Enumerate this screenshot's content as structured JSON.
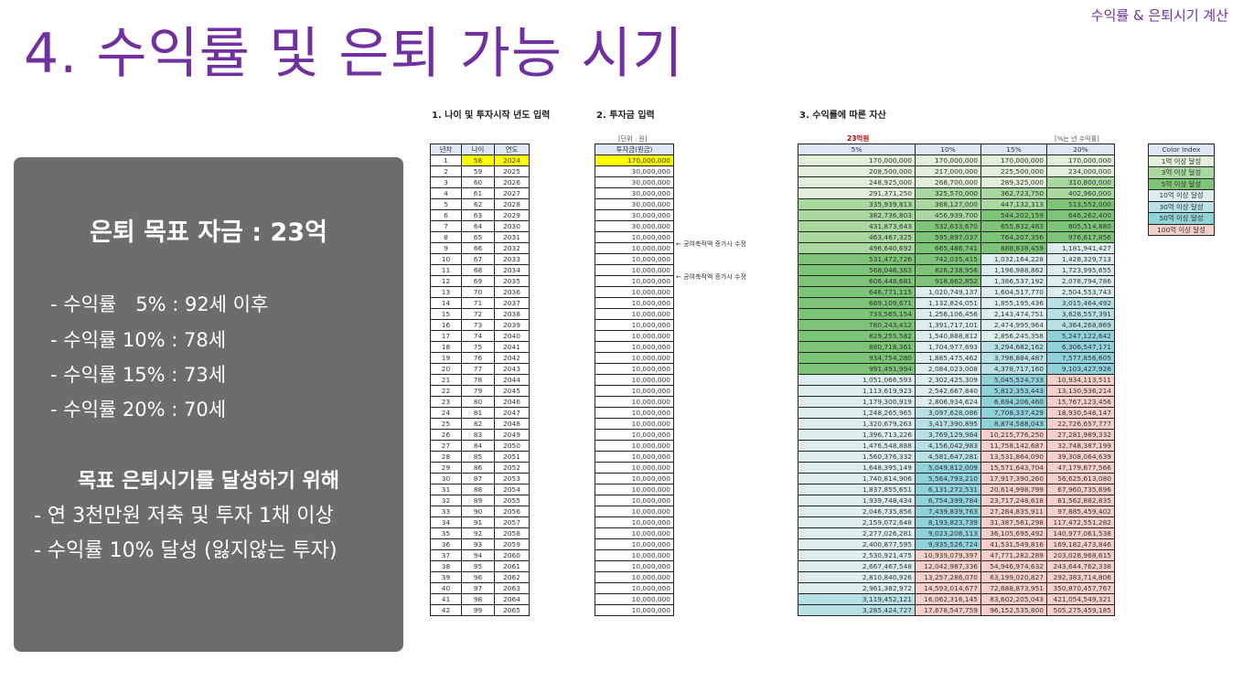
{
  "header": {
    "top_label": "수익률 & 은퇴시기 계산",
    "title": "4. 수익률 및 은퇴 가능 시기"
  },
  "panel": {
    "goal": "은퇴 목표 자금 : 23억",
    "rates": [
      "- 수익률　5% : 92세 이후",
      "- 수익률 10% : 78세",
      "- 수익률 15% : 73세",
      "- 수익률 20% : 70세"
    ],
    "plan_heading": "목표 은퇴시기를 달성하기 위해",
    "plan_items": [
      "- 연 3천만원 저축 및 투자 1채 이상",
      "- 수익률 10% 달성 (잃지않는 투자)"
    ]
  },
  "sections": {
    "s1": "1. 나이 및 투자시작 년도 입력",
    "s2": "2. 투자금 입력",
    "s3": "3. 수익률에 따른 자산",
    "unit_note": "[단위 : 원]",
    "target_note": "23억원",
    "rate_note": "[%는 년 수익률]"
  },
  "table1": {
    "headers": [
      "년차",
      "나이",
      "연도"
    ],
    "start_age": 58,
    "start_year": 2024,
    "rows": 42
  },
  "table2": {
    "header": "투자금(원금)",
    "first": "170,000,000",
    "year2to7": "30,000,000",
    "rest": "10,000,000",
    "arrow_notes": [
      "← 공여축적액 증가시 수정",
      "← 공여축적액 증가시 수정"
    ]
  },
  "table3": {
    "headers": [
      "5%",
      "10%",
      "15%",
      "20%"
    ],
    "rows": [
      [
        "170,000,000",
        "170,000,000",
        "170,000,000",
        "170,000,000"
      ],
      [
        "208,500,000",
        "217,000,000",
        "225,500,000",
        "234,000,000"
      ],
      [
        "248,925,000",
        "268,700,000",
        "289,325,000",
        "310,800,000"
      ],
      [
        "291,371,250",
        "325,570,000",
        "362,723,750",
        "402,960,000"
      ],
      [
        "335,939,813",
        "388,127,000",
        "447,132,313",
        "513,552,000"
      ],
      [
        "382,736,803",
        "456,939,700",
        "544,202,159",
        "646,262,400"
      ],
      [
        "431,873,643",
        "532,633,670",
        "655,832,483",
        "805,514,880"
      ],
      [
        "463,467,325",
        "595,897,037",
        "764,207,356",
        "976,617,856"
      ],
      [
        "496,640,692",
        "665,486,741",
        "888,838,459",
        "1,181,941,427"
      ],
      [
        "531,472,726",
        "742,035,415",
        "1,032,164,228",
        "1,428,329,713"
      ],
      [
        "568,046,363",
        "826,238,956",
        "1,196,988,862",
        "1,723,995,655"
      ],
      [
        "606,448,681",
        "918,862,852",
        "1,386,537,192",
        "2,078,794,786"
      ],
      [
        "646,771,115",
        "1,020,749,137",
        "1,604,517,770",
        "2,504,553,743"
      ],
      [
        "689,109,671",
        "1,132,824,051",
        "1,855,195,436",
        "3,015,464,492"
      ],
      [
        "733,565,154",
        "1,256,106,456",
        "2,143,474,751",
        "3,628,557,391"
      ],
      [
        "780,243,412",
        "1,391,717,101",
        "2,474,995,964",
        "4,364,268,869"
      ],
      [
        "829,255,582",
        "1,540,888,812",
        "2,856,245,358",
        "5,247,122,642"
      ],
      [
        "880,718,361",
        "1,704,977,693",
        "3,294,682,162",
        "6,306,547,171"
      ],
      [
        "934,754,280",
        "1,885,475,462",
        "3,798,884,487",
        "7,577,856,605"
      ],
      [
        "991,491,994",
        "2,084,023,008",
        "4,378,717,160",
        "9,103,427,926"
      ],
      [
        "1,051,066,593",
        "2,302,425,309",
        "5,045,524,733",
        "10,934,113,511"
      ],
      [
        "1,113,619,923",
        "2,542,667,840",
        "5,812,353,443",
        "13,130,936,214"
      ],
      [
        "1,179,300,919",
        "2,806,934,624",
        "6,694,206,460",
        "15,767,123,456"
      ],
      [
        "1,248,265,965",
        "3,097,628,086",
        "7,708,337,429",
        "18,930,548,147"
      ],
      [
        "1,320,679,263",
        "3,417,390,895",
        "8,874,588,043",
        "22,726,657,777"
      ],
      [
        "1,396,713,226",
        "3,769,129,984",
        "10,215,776,250",
        "27,281,989,332"
      ],
      [
        "1,476,548,888",
        "4,156,042,983",
        "11,758,142,687",
        "32,748,387,199"
      ],
      [
        "1,560,376,332",
        "4,581,647,281",
        "13,531,864,090",
        "39,308,064,639"
      ],
      [
        "1,648,395,149",
        "5,049,812,009",
        "15,571,643,704",
        "47,179,677,566"
      ],
      [
        "1,740,814,906",
        "5,564,793,210",
        "17,917,390,260",
        "56,625,613,080"
      ],
      [
        "1,837,855,651",
        "6,131,272,531",
        "20,614,998,799",
        "67,960,735,696"
      ],
      [
        "1,939,748,434",
        "6,754,399,784",
        "23,717,248,618",
        "81,562,882,835"
      ],
      [
        "2,046,735,856",
        "7,439,839,763",
        "27,284,835,911",
        "97,885,459,402"
      ],
      [
        "2,159,072,648",
        "8,193,823,739",
        "31,387,561,298",
        "117,472,551,282"
      ],
      [
        "2,277,026,281",
        "9,023,206,113",
        "36,105,695,492",
        "140,977,061,538"
      ],
      [
        "2,400,877,595",
        "9,935,526,724",
        "41,531,549,816",
        "169,182,473,846"
      ],
      [
        "2,530,921,475",
        "10,939,079,397",
        "47,771,282,289",
        "203,028,968,615"
      ],
      [
        "2,667,467,548",
        "12,042,987,336",
        "54,946,974,632",
        "243,644,762,338"
      ],
      [
        "2,810,840,926",
        "13,257,286,070",
        "63,199,020,827",
        "292,383,714,806"
      ],
      [
        "2,961,382,972",
        "14,593,014,677",
        "72,688,873,951",
        "350,870,457,767"
      ],
      [
        "3,119,452,121",
        "16,062,316,145",
        "83,602,205,043",
        "421,054,549,321"
      ],
      [
        "3,285,424,727",
        "17,678,547,759",
        "96,152,535,800",
        "505,275,459,185"
      ]
    ]
  },
  "legend": {
    "header": "Color Index",
    "items": [
      {
        "label": "1억 이상 달성",
        "color": "#e2f0d9"
      },
      {
        "label": "3억 이상 달성",
        "color": "#a9d8a0"
      },
      {
        "label": "5억 이상 달성",
        "color": "#7cc576"
      },
      {
        "label": "10억 이상 달성",
        "color": "#dcefee"
      },
      {
        "label": "30억 이상 달성",
        "color": "#b7e1e4"
      },
      {
        "label": "50억 이상 달성",
        "color": "#8fd2da"
      },
      {
        "label": "100억 이상 달성",
        "color": "#f6cfc8"
      }
    ]
  }
}
